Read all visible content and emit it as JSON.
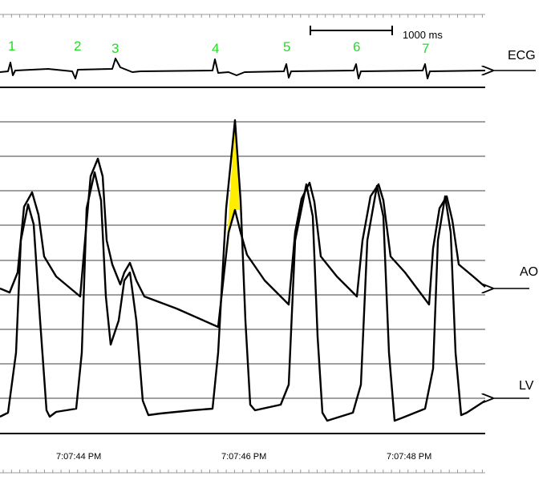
{
  "beat_labels": [
    "1",
    "2",
    "3",
    "4",
    "5",
    "6",
    "7"
  ],
  "scale_label": "1000 ms",
  "trace_labels": {
    "ecg": "ECG",
    "ao": "AO",
    "lv": "LV"
  },
  "time_labels": [
    "7:07:44 PM",
    "7:07:46 PM",
    "7:07:48 PM"
  ]
}
